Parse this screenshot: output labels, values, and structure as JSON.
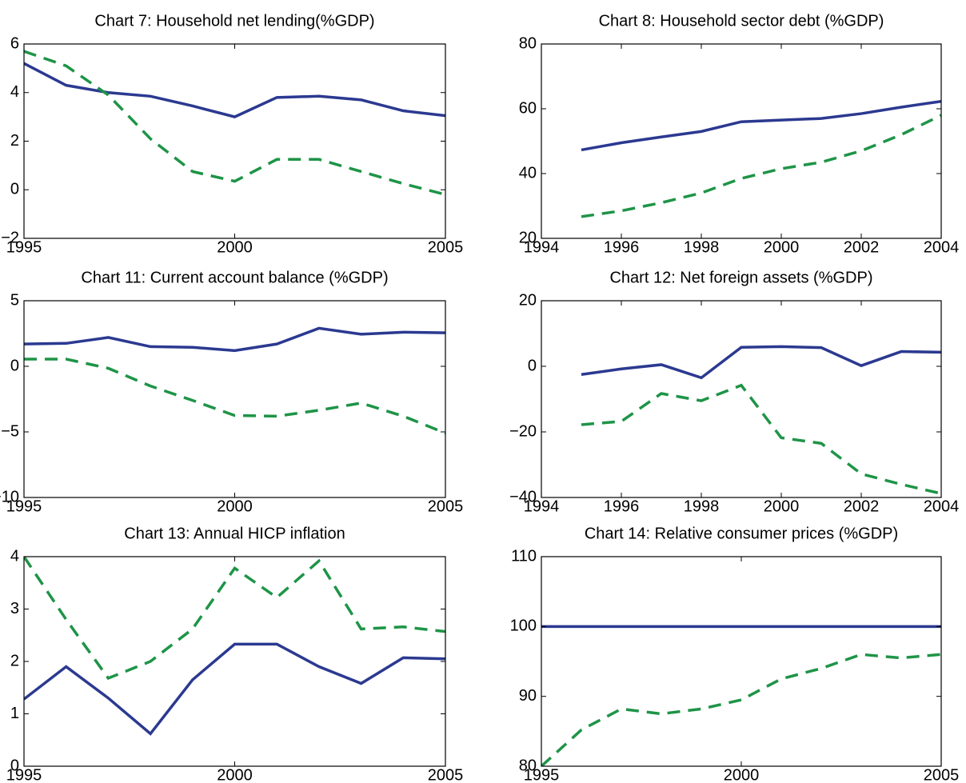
{
  "chart_data": [
    {
      "type": "line",
      "title": "Chart 7: Household net lending(%GDP)",
      "x": [
        1995,
        1996,
        1997,
        1998,
        1999,
        2000,
        2001,
        2002,
        2003,
        2004,
        2005
      ],
      "xlim": [
        1995,
        2005
      ],
      "xticks": [
        1995,
        2000,
        2005
      ],
      "ylim": [
        -2,
        6
      ],
      "yticks": [
        {
          "value": -2,
          "label": "−2"
        },
        0,
        2,
        4,
        6
      ],
      "series": [
        {
          "color": "#2b3990",
          "dashed": false,
          "values": [
            5.2,
            4.3,
            4.0,
            3.85,
            3.45,
            3.0,
            3.8,
            3.85,
            3.7,
            3.25,
            3.05
          ]
        },
        {
          "color": "#1e9447",
          "dashed": true,
          "values": [
            5.7,
            5.1,
            3.9,
            2.1,
            0.75,
            0.35,
            1.25,
            1.25,
            0.75,
            0.25,
            -0.2
          ]
        }
      ]
    },
    {
      "type": "line",
      "title": "Chart 8: Household sector debt (%GDP)",
      "x": [
        1995,
        1996,
        1997,
        1998,
        1999,
        2000,
        2001,
        2002,
        2003,
        2004
      ],
      "xlim": [
        1994,
        2004
      ],
      "xticks": [
        1994,
        1996,
        1998,
        2000,
        2002,
        2004
      ],
      "ylim": [
        20,
        80
      ],
      "yticks": [
        20,
        40,
        60,
        80
      ],
      "series": [
        {
          "color": "#2b3990",
          "dashed": false,
          "values": [
            47.3,
            49.5,
            51.3,
            53,
            56,
            56.5,
            57,
            58.5,
            60.5,
            62.3
          ]
        },
        {
          "color": "#1e9447",
          "dashed": true,
          "values": [
            26.7,
            28.5,
            31,
            34,
            38.5,
            41.5,
            43.5,
            47,
            52,
            58
          ]
        }
      ]
    },
    {
      "type": "line",
      "title": "Chart 11: Current account balance (%GDP)",
      "x": [
        1995,
        1996,
        1997,
        1998,
        1999,
        2000,
        2001,
        2002,
        2003,
        2004,
        2005
      ],
      "xlim": [
        1995,
        2005
      ],
      "xticks": [
        1995,
        2000,
        2005
      ],
      "ylim": [
        -10,
        5
      ],
      "yticks": [
        {
          "value": -10,
          "label": "−10"
        },
        {
          "value": -5,
          "label": "−5"
        },
        0,
        5
      ],
      "series": [
        {
          "color": "#2b3990",
          "dashed": false,
          "values": [
            1.7,
            1.75,
            2.2,
            1.5,
            1.45,
            1.2,
            1.7,
            2.9,
            2.45,
            2.6,
            2.55
          ]
        },
        {
          "color": "#1e9447",
          "dashed": true,
          "values": [
            0.55,
            0.55,
            -0.15,
            -1.5,
            -2.6,
            -3.75,
            -3.8,
            -3.35,
            -2.8,
            -3.8,
            -5.1
          ]
        }
      ]
    },
    {
      "type": "line",
      "title": "Chart 12: Net foreign assets (%GDP)",
      "x": [
        1995,
        1996,
        1997,
        1998,
        1999,
        2000,
        2001,
        2002,
        2003,
        2004
      ],
      "xlim": [
        1994,
        2004
      ],
      "xticks": [
        1994,
        1996,
        1998,
        2000,
        2002,
        2004
      ],
      "ylim": [
        -40,
        20
      ],
      "yticks": [
        {
          "value": -40,
          "label": "−40"
        },
        {
          "value": -20,
          "label": "−20"
        },
        0,
        20
      ],
      "series": [
        {
          "color": "#2b3990",
          "dashed": false,
          "values": [
            -2.5,
            -0.8,
            0.5,
            -3.5,
            5.8,
            6.0,
            5.7,
            0.2,
            4.5,
            4.3
          ]
        },
        {
          "color": "#1e9447",
          "dashed": true,
          "values": [
            -17.8,
            -16.8,
            -8.3,
            -10.5,
            -5.8,
            -21.8,
            -23.5,
            -32.8,
            -36,
            -38.8
          ]
        }
      ]
    },
    {
      "type": "line",
      "title": "Chart 13: Annual HICP inflation",
      "x": [
        1995,
        1996,
        1997,
        1998,
        1999,
        2000,
        2001,
        2002,
        2003,
        2004,
        2005
      ],
      "xlim": [
        1995,
        2005
      ],
      "xticks": [
        1995,
        2000,
        2005
      ],
      "ylim": [
        0,
        4
      ],
      "yticks": [
        0,
        1,
        2,
        3,
        4
      ],
      "series": [
        {
          "color": "#2b3990",
          "dashed": false,
          "values": [
            1.28,
            1.9,
            1.3,
            0.62,
            1.65,
            2.33,
            2.33,
            1.9,
            1.58,
            2.07,
            2.05
          ]
        },
        {
          "color": "#1e9447",
          "dashed": true,
          "values": [
            4.0,
            2.8,
            1.68,
            2.0,
            2.62,
            3.78,
            3.22,
            3.92,
            2.62,
            2.66,
            2.57
          ]
        }
      ]
    },
    {
      "type": "line",
      "title": "Chart 14: Relative consumer prices (%GDP)",
      "x": [
        1995,
        1996,
        1997,
        1998,
        1999,
        2000,
        2001,
        2002,
        2003,
        2004,
        2005
      ],
      "xlim": [
        1995,
        2005
      ],
      "xticks": [
        1995,
        2000,
        2005
      ],
      "ylim": [
        80,
        110
      ],
      "yticks": [
        80,
        90,
        100,
        110
      ],
      "series": [
        {
          "color": "#2b3990",
          "dashed": false,
          "values": [
            100,
            100,
            100,
            100,
            100,
            100,
            100,
            100,
            100,
            100,
            100
          ]
        },
        {
          "color": "#1e9447",
          "dashed": true,
          "values": [
            80,
            85.2,
            88.2,
            87.5,
            88.2,
            89.5,
            92.5,
            94,
            96,
            95.5,
            96
          ]
        }
      ]
    }
  ]
}
